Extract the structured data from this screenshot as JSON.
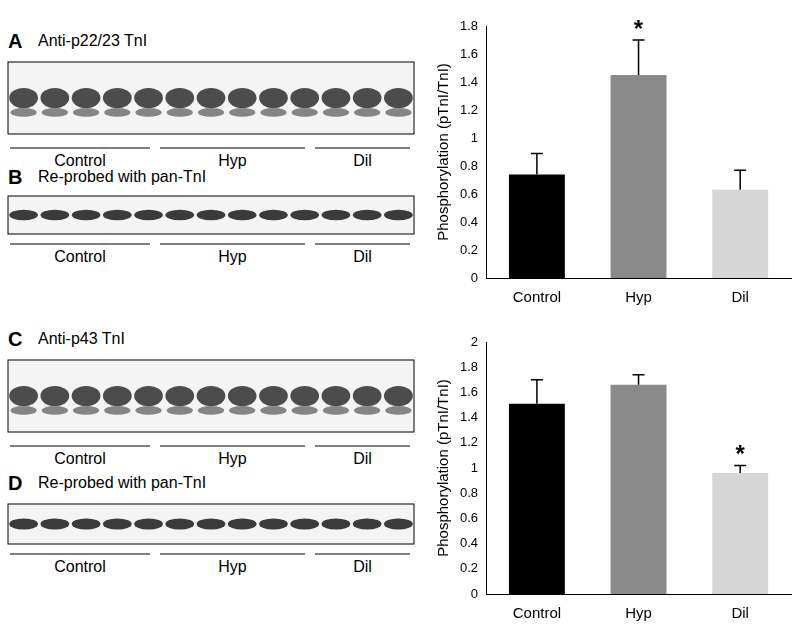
{
  "panels": [
    {
      "letter": "A",
      "label": "Anti-p22/23 TnI",
      "groups": [
        "Control",
        "Hyp",
        "Dil"
      ]
    },
    {
      "letter": "B",
      "label": "Re-probed with pan-TnI",
      "groups": [
        "Control",
        "Hyp",
        "Dil"
      ]
    },
    {
      "letter": "C",
      "label": "Anti-p43 TnI",
      "groups": [
        "Control",
        "Hyp",
        "Dil"
      ]
    },
    {
      "letter": "D",
      "label": "Re-probed with pan-TnI",
      "groups": [
        "Control",
        "Hyp",
        "Dil"
      ]
    }
  ],
  "chart_data": [
    {
      "type": "bar",
      "categories": [
        "Control",
        "Hyp",
        "Dil"
      ],
      "values": [
        0.74,
        1.45,
        0.63
      ],
      "errors": [
        0.15,
        0.25,
        0.14
      ],
      "colors": [
        "#000000",
        "#8a8a8a",
        "#d6d6d6"
      ],
      "ylabel": "Phosphorylation (pTnI/TnI)",
      "ylim": [
        0,
        1.8
      ],
      "yticks": [
        0,
        0.2,
        0.4,
        0.6,
        0.8,
        1,
        1.2,
        1.4,
        1.6,
        1.8
      ],
      "grid": false,
      "annotations": [
        {
          "text": "*",
          "category": "Hyp"
        }
      ]
    },
    {
      "type": "bar",
      "categories": [
        "Control",
        "Hyp",
        "Dil"
      ],
      "values": [
        1.51,
        1.66,
        0.96
      ],
      "errors": [
        0.19,
        0.08,
        0.06
      ],
      "colors": [
        "#000000",
        "#8a8a8a",
        "#d6d6d6"
      ],
      "ylabel": "Phosphorylation (pTnI/TnI)",
      "ylim": [
        0,
        2
      ],
      "yticks": [
        0,
        0.2,
        0.4,
        0.6,
        0.8,
        1,
        1.2,
        1.4,
        1.6,
        1.8,
        2
      ],
      "grid": false,
      "annotations": [
        {
          "text": "*",
          "category": "Dil"
        }
      ]
    }
  ]
}
